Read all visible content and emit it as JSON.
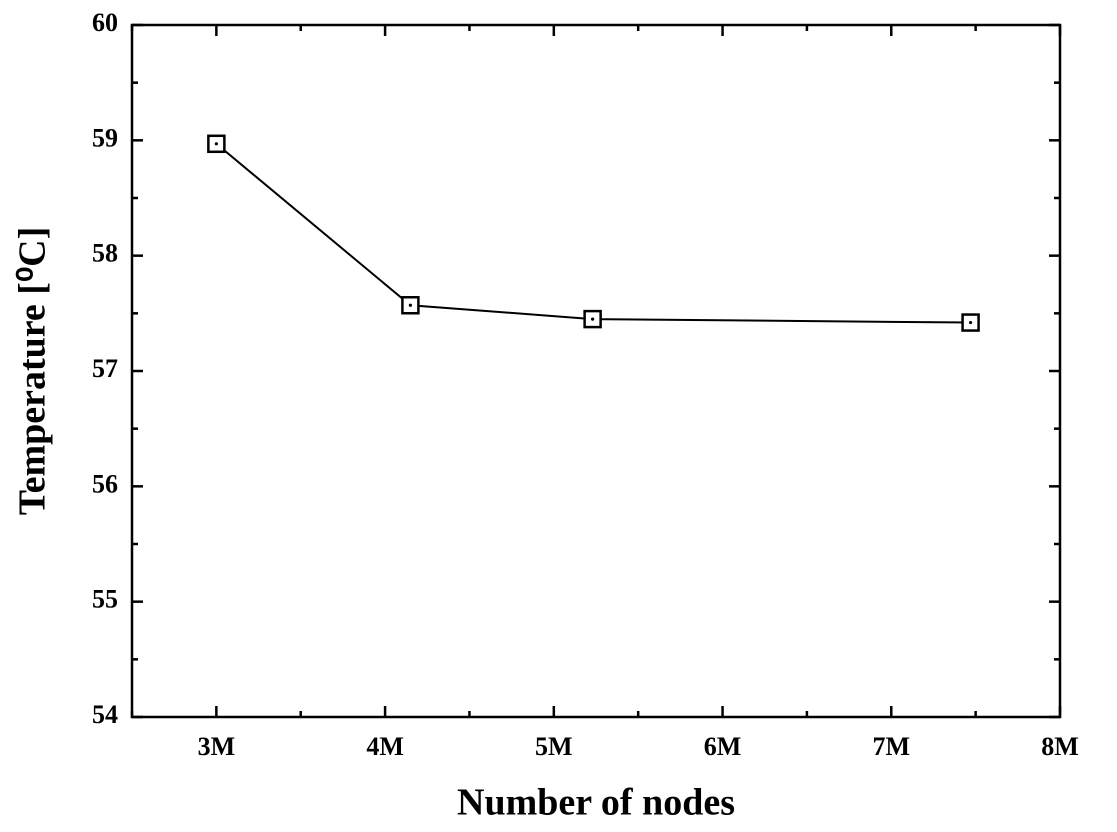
{
  "chart_data": {
    "type": "line",
    "xlabel": "Number of nodes",
    "ylabel": "Temperature [⁰C]",
    "x": [
      3000000,
      4150000,
      5230000,
      7470000
    ],
    "series": [
      {
        "color": "#000000",
        "values": [
          58.97,
          57.57,
          57.45,
          57.42
        ]
      }
    ],
    "xlim": [
      2500000,
      8000000
    ],
    "xticks": [
      {
        "value": 3000000,
        "label": "3M"
      },
      {
        "value": 4000000,
        "label": "4M"
      },
      {
        "value": 5000000,
        "label": "5M"
      },
      {
        "value": 6000000,
        "label": "6M"
      },
      {
        "value": 7000000,
        "label": "7M"
      },
      {
        "value": 8000000,
        "label": "8M"
      }
    ],
    "xminorticks": [
      2500000,
      3500000,
      4500000,
      5500000,
      6500000,
      7500000
    ],
    "ylim": [
      54,
      60
    ],
    "yticks": [
      54,
      55,
      56,
      57,
      58,
      59,
      60
    ],
    "yminorticks": [
      54.5,
      55.5,
      56.5,
      57.5,
      58.5,
      59.5
    ],
    "marker": "square"
  }
}
